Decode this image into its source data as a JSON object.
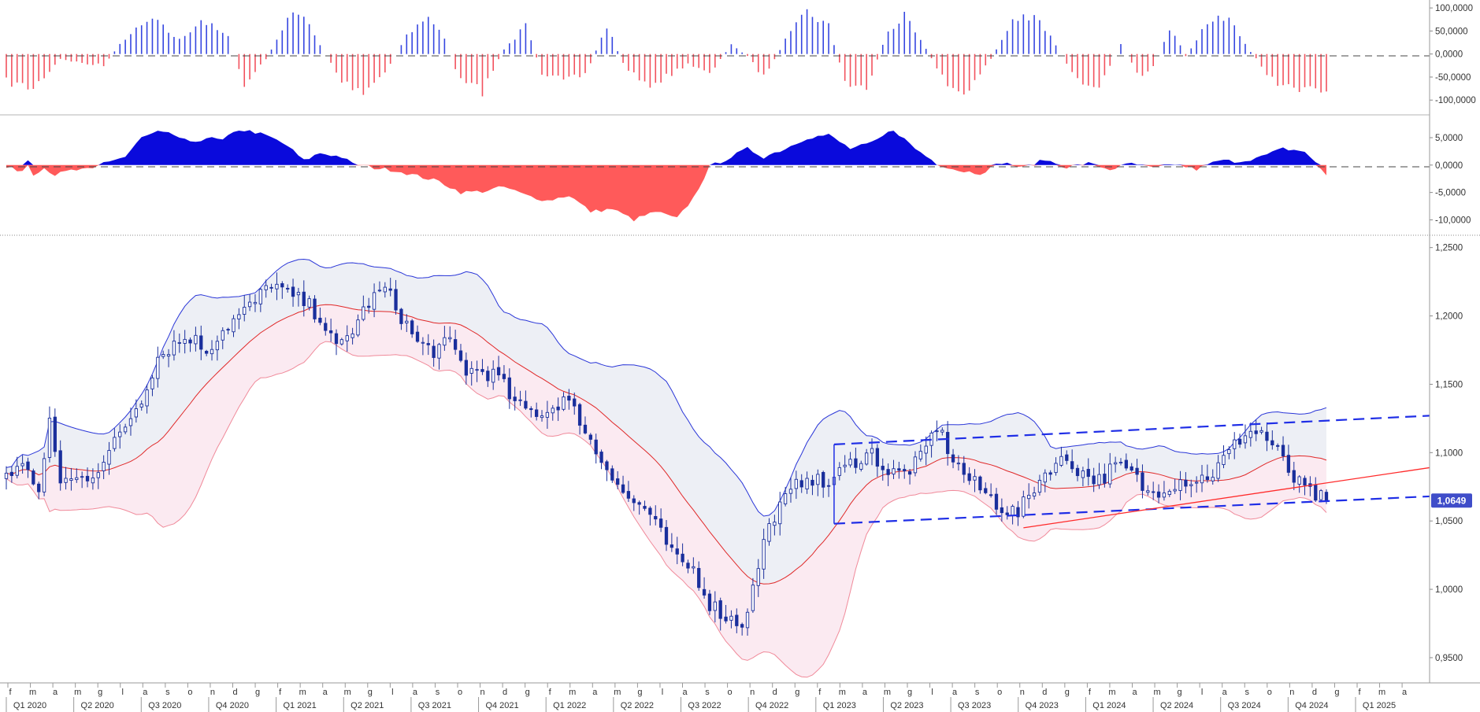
{
  "chart_data": [
    {
      "panel": "histogram-oscillator",
      "type": "bar",
      "y_ticks": [
        "100,0000",
        "50,0000",
        "0,0000",
        "-50,0000",
        "-100,0000"
      ],
      "y_tick_values": [
        100,
        50,
        0,
        -50,
        -100
      ],
      "ylim": [
        -115,
        107
      ],
      "colors": {
        "positive": "#3546e0",
        "negative": "#f2525e"
      },
      "zero_line": "dashed"
    },
    {
      "panel": "area-oscillator",
      "type": "area",
      "y_ticks": [
        "5,0000",
        "0,0000",
        "-5,0000",
        "-10,0000"
      ],
      "y_tick_values": [
        5,
        0,
        -5,
        -10
      ],
      "ylim": [
        -11.8,
        8.3
      ],
      "colors": {
        "positive": "#0a0adc",
        "negative": "#ff5a5a"
      },
      "zero_line": "dashed"
    },
    {
      "panel": "price",
      "type": "candlestick",
      "y_ticks": [
        "1,2500",
        "1,2000",
        "1,1500",
        "1,1000",
        "1,0500",
        "1,0000",
        "0,9500"
      ],
      "y_tick_values": [
        1.25,
        1.2,
        1.15,
        1.1,
        1.05,
        1.0,
        0.95
      ],
      "ylim": [
        0.935,
        1.255
      ],
      "last_price": "1,0649",
      "last_price_value": 1.0649,
      "overlays": [
        "bollinger-upper",
        "bollinger-middle",
        "bollinger-lower",
        "channel-top",
        "channel-bottom",
        "trend-line"
      ],
      "colors": {
        "candle": "#1a2f9c",
        "upper_band": "#2a36d8",
        "middle_band": "#e02828",
        "lower_band": "#f08a9a",
        "band_fill_upper": "#edeff5",
        "band_fill_lower": "#fbeaf1",
        "channel": "#1f2ee6",
        "trend_line": "#ff2a2a",
        "price_badge": "#3f4dc9"
      }
    }
  ],
  "x_axis": {
    "months": [
      "f",
      "m",
      "a",
      "m",
      "g",
      "l",
      "a",
      "s",
      "o",
      "n",
      "d",
      "g",
      "f",
      "m",
      "a",
      "m",
      "g",
      "l",
      "a",
      "s",
      "o",
      "n",
      "d",
      "g",
      "f",
      "m",
      "a",
      "m",
      "g",
      "l",
      "a",
      "s",
      "o",
      "n",
      "d",
      "g",
      "f",
      "m",
      "a",
      "m",
      "g",
      "l",
      "a",
      "s",
      "o",
      "n",
      "d",
      "g",
      "f",
      "m",
      "a",
      "m",
      "g",
      "l",
      "a",
      "s",
      "o",
      "n",
      "d",
      "g",
      "f",
      "m",
      "a"
    ],
    "quarters": [
      "Q1 2020",
      "Q2 2020",
      "Q3 2020",
      "Q4 2020",
      "Q1 2021",
      "Q2 2021",
      "Q3 2021",
      "Q4 2021",
      "Q1 2022",
      "Q2 2022",
      "Q3 2022",
      "Q4 2022",
      "Q1 2023",
      "Q2 2023",
      "Q3 2023",
      "Q4 2023",
      "Q1 2024",
      "Q2 2024",
      "Q3 2024",
      "Q4 2024",
      "Q1 2025"
    ]
  }
}
